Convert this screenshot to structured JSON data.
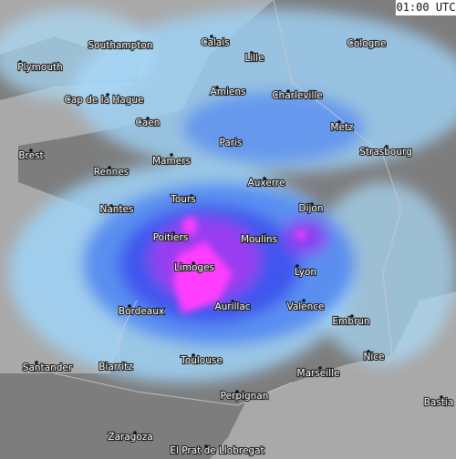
{
  "time": "01:00 UTC",
  "cities": [
    {
      "name": "Southampton"
    },
    {
      "name": "Plymouth"
    },
    {
      "name": "Calais"
    },
    {
      "name": "Lille"
    },
    {
      "name": "Cologne"
    },
    {
      "name": "Amiens"
    },
    {
      "name": "Charleville"
    },
    {
      "name": "Cap de la Hague"
    },
    {
      "name": "Caen"
    },
    {
      "name": "Metz"
    },
    {
      "name": "Paris"
    },
    {
      "name": "Brest"
    },
    {
      "name": "Strasbourg"
    },
    {
      "name": "Mamers"
    },
    {
      "name": "Rennes"
    },
    {
      "name": "Auxerre"
    },
    {
      "name": "Tours"
    },
    {
      "name": "Nantes"
    },
    {
      "name": "Dijon"
    },
    {
      "name": "Poitiers"
    },
    {
      "name": "Moulins"
    },
    {
      "name": "Limoges"
    },
    {
      "name": "Lyon"
    },
    {
      "name": "Aurillac"
    },
    {
      "name": "Valence"
    },
    {
      "name": "Bordeaux"
    },
    {
      "name": "Embrun"
    },
    {
      "name": "Toulouse"
    },
    {
      "name": "Nice"
    },
    {
      "name": "Santander"
    },
    {
      "name": "Biarritz"
    },
    {
      "name": "Marseille"
    },
    {
      "name": "Bastia"
    },
    {
      "name": "Perpignan"
    },
    {
      "name": "Zaragoza"
    },
    {
      "name": "El Prat de Llobregat"
    }
  ]
}
